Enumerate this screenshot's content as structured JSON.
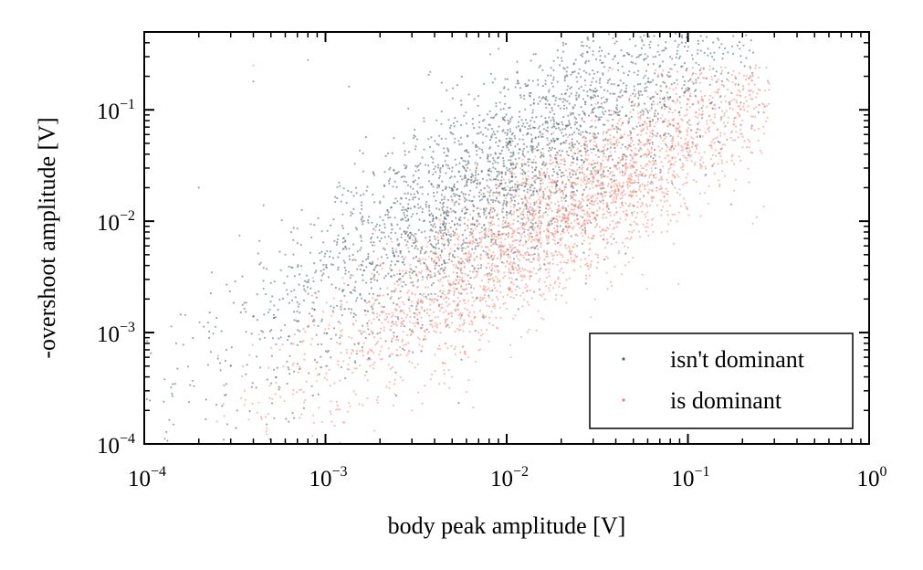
{
  "chart_data": {
    "type": "scatter",
    "title": "",
    "xlabel": "body peak amplitude [V]",
    "ylabel": "-overshoot amplitude [V]",
    "xscale": "log",
    "yscale": "log",
    "xlim": [
      0.0001,
      1
    ],
    "ylim": [
      0.0001,
      0.5
    ],
    "x_ticks": [
      {
        "value": 0.0001,
        "base": "10",
        "exp": "−4"
      },
      {
        "value": 0.001,
        "base": "10",
        "exp": "−3"
      },
      {
        "value": 0.01,
        "base": "10",
        "exp": "−2"
      },
      {
        "value": 0.1,
        "base": "10",
        "exp": "−1"
      },
      {
        "value": 1,
        "base": "10",
        "exp": "0"
      }
    ],
    "y_ticks": [
      {
        "value": 0.0001,
        "base": "10",
        "exp": "−4"
      },
      {
        "value": 0.001,
        "base": "10",
        "exp": "−3"
      },
      {
        "value": 0.01,
        "base": "10",
        "exp": "−2"
      },
      {
        "value": 0.1,
        "base": "10",
        "exp": "−1"
      }
    ],
    "grid": false,
    "legend_position": "bottom-right",
    "series": [
      {
        "name": "isn't dominant",
        "color": "#4a6470",
        "point_count_approx": 3000,
        "x_log10_center": -2.0,
        "x_log10_spread": 0.75,
        "y_over_x_log10_offset": 0.45,
        "y_log10_spread": 0.45,
        "x_log10_range": [
          -4,
          -0.6
        ],
        "y_log10_range": [
          -4,
          -0.3
        ],
        "sample_points": [
          [
            0.0004,
            0.18
          ],
          [
            0.0008,
            0.28
          ],
          [
            0.0012,
            0.0009
          ],
          [
            0.002,
            0.004
          ],
          [
            0.003,
            0.006
          ],
          [
            0.005,
            0.01
          ],
          [
            0.008,
            0.02
          ],
          [
            0.01,
            0.015
          ],
          [
            0.02,
            0.05
          ],
          [
            0.03,
            0.03
          ],
          [
            0.05,
            0.1
          ],
          [
            0.08,
            0.2
          ],
          [
            0.1,
            0.15
          ],
          [
            0.0002,
            0.02
          ],
          [
            0.00015,
            0.0008
          ],
          [
            0.0003,
            0.0005
          ]
        ]
      },
      {
        "name": "is dominant",
        "color": "#f08070",
        "point_count_approx": 3200,
        "x_log10_center": -1.7,
        "x_log10_spread": 0.7,
        "y_over_x_log10_offset": -0.25,
        "y_log10_spread": 0.35,
        "x_log10_range": [
          -3.6,
          -0.55
        ],
        "y_log10_range": [
          -4,
          -0.6
        ],
        "sample_points": [
          [
            0.0004,
            0.25
          ],
          [
            0.001,
            0.0005
          ],
          [
            0.002,
            0.001
          ],
          [
            0.004,
            0.002
          ],
          [
            0.008,
            0.003
          ],
          [
            0.01,
            0.005
          ],
          [
            0.02,
            0.01
          ],
          [
            0.04,
            0.015
          ],
          [
            0.08,
            0.03
          ],
          [
            0.1,
            0.05
          ],
          [
            0.2,
            0.08
          ],
          [
            0.25,
            0.15
          ],
          [
            0.005,
            0.0004
          ],
          [
            0.003,
            0.0002
          ]
        ]
      }
    ]
  }
}
